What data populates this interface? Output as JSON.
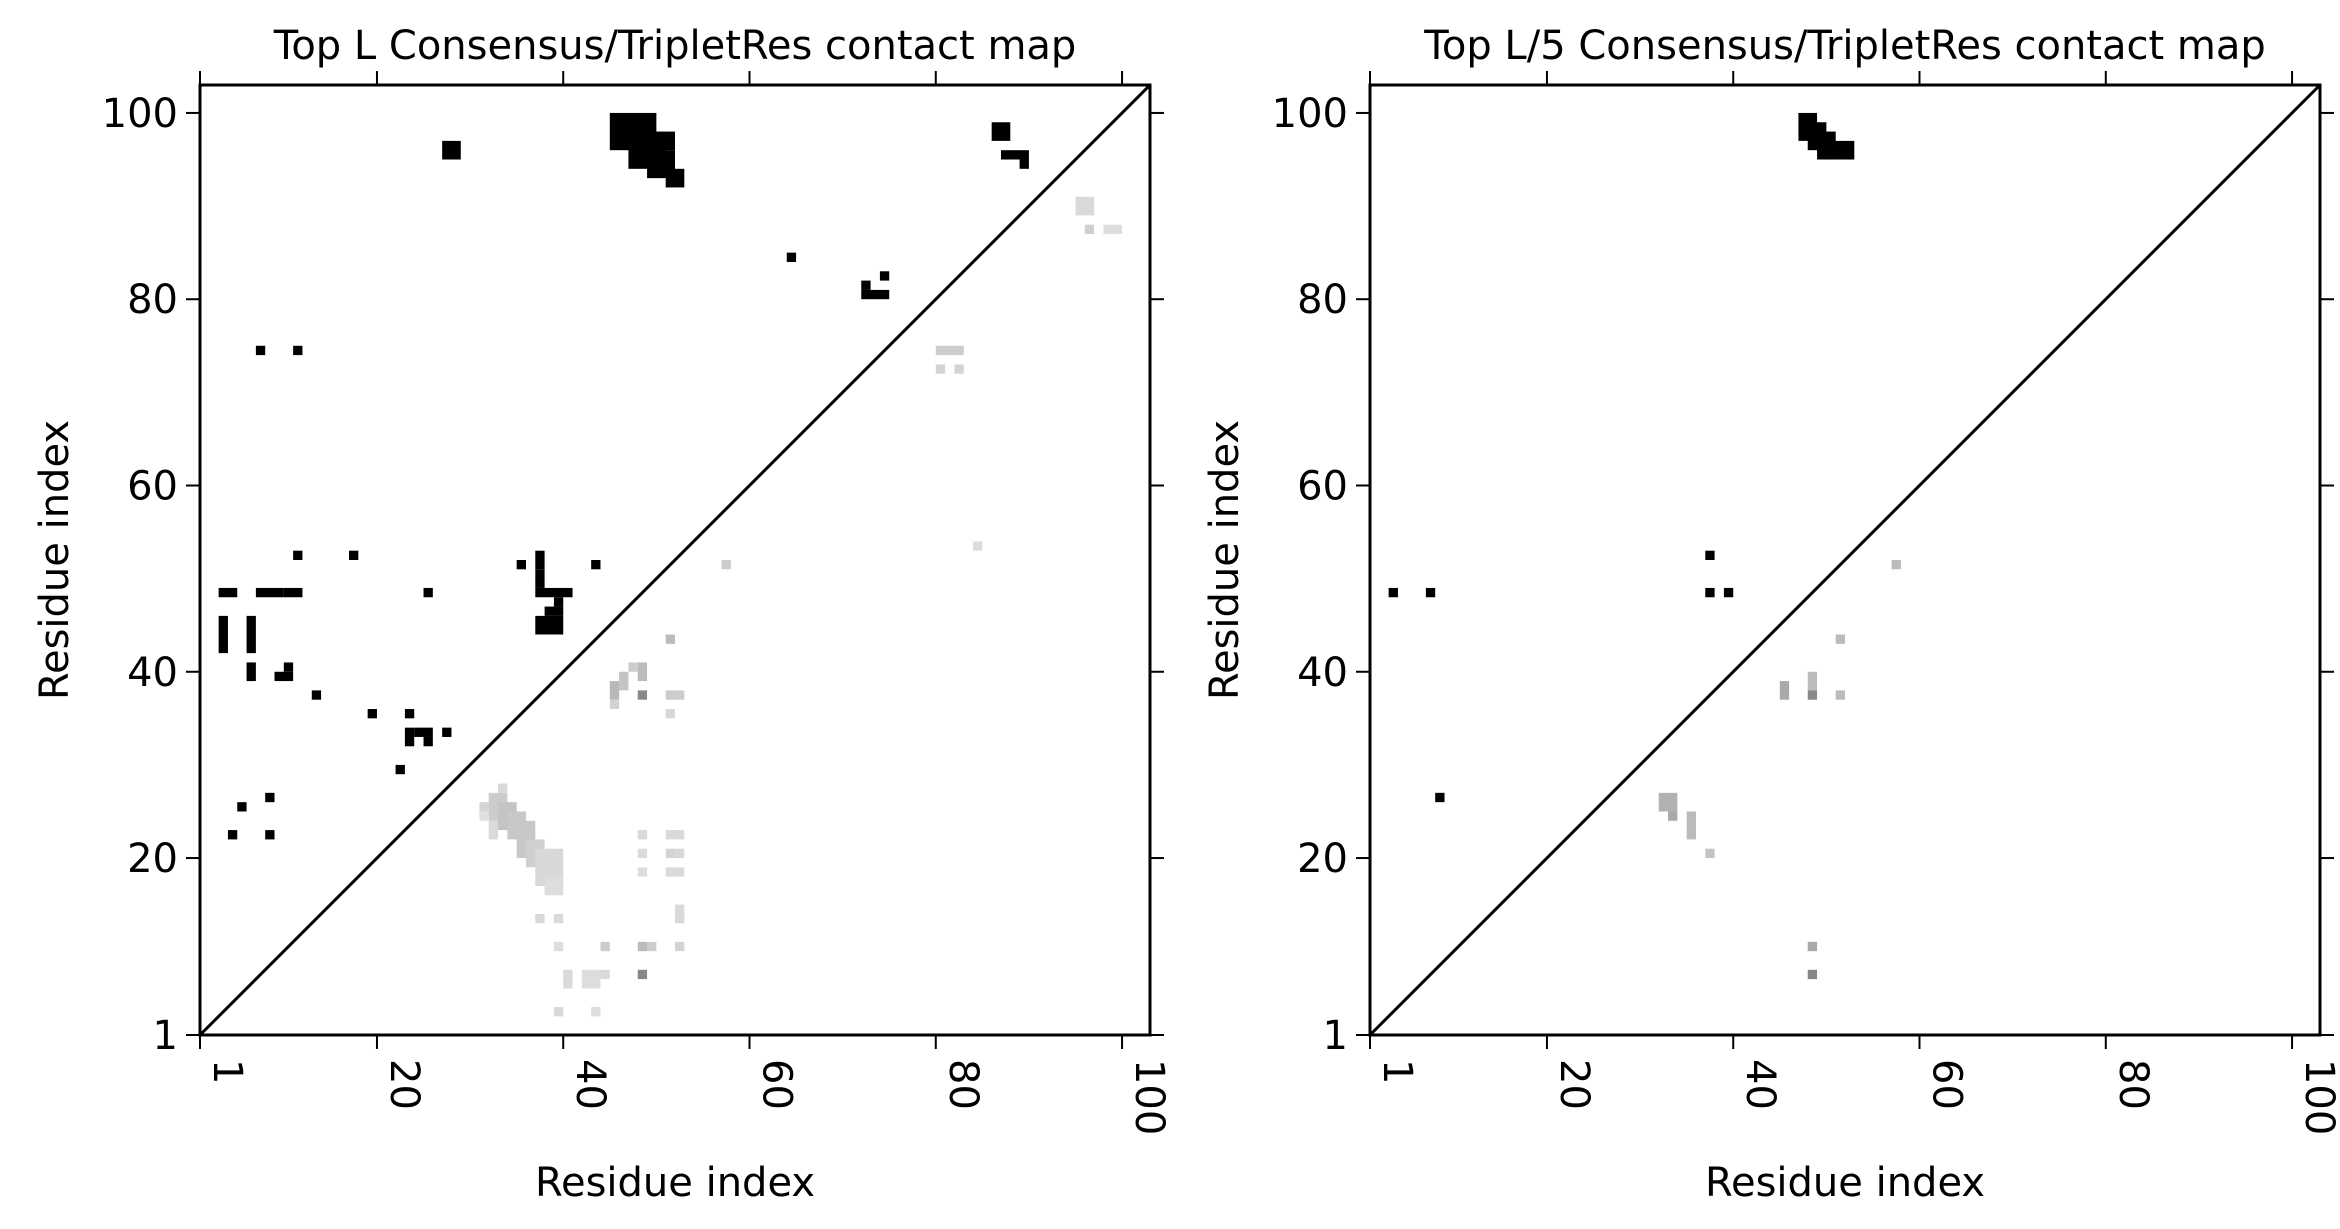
{
  "chart_data": [
    {
      "type": "heatmap",
      "title": "Top L Consensus/TripletRes contact map",
      "xlabel": "Residue index",
      "ylabel": "Residue index",
      "xlim": [
        1,
        103
      ],
      "ylim": [
        1,
        103
      ],
      "xticks": [
        "1",
        "20",
        "40",
        "60",
        "80",
        "100"
      ],
      "yticks": [
        "1",
        "20",
        "40",
        "60",
        "80",
        "100"
      ],
      "diagonal_line": true,
      "grid": false,
      "upper_black_rects": [
        [
          45,
          50,
          96,
          100
        ],
        [
          47,
          51,
          94,
          97
        ],
        [
          49,
          52,
          93,
          96
        ],
        [
          51,
          53,
          92,
          94
        ],
        [
          49,
          52,
          96,
          98
        ],
        [
          27,
          29,
          95,
          97
        ],
        [
          86,
          88,
          97,
          99
        ],
        [
          87,
          90,
          95,
          96
        ],
        [
          89,
          90,
          94,
          95
        ],
        [
          64,
          65,
          84,
          85
        ],
        [
          72,
          73,
          81,
          82
        ],
        [
          72,
          75,
          80,
          81
        ],
        [
          74,
          75,
          82,
          83
        ],
        [
          7,
          8,
          74,
          75
        ],
        [
          11,
          12,
          74,
          75
        ],
        [
          3,
          5,
          48,
          49
        ],
        [
          7,
          10,
          48,
          49
        ],
        [
          10,
          12,
          48,
          49
        ],
        [
          11,
          12,
          52,
          53
        ],
        [
          17,
          18,
          52,
          53
        ],
        [
          25,
          26,
          48,
          49
        ],
        [
          35,
          36,
          51,
          52
        ],
        [
          37,
          38,
          51,
          53
        ],
        [
          37,
          38,
          49,
          51
        ],
        [
          37,
          41,
          48,
          49
        ],
        [
          39,
          40,
          47,
          48
        ],
        [
          37,
          40,
          44,
          46
        ],
        [
          38,
          40,
          46,
          47
        ],
        [
          43,
          44,
          51,
          52
        ],
        [
          3,
          4,
          42,
          46
        ],
        [
          6,
          7,
          44,
          46
        ],
        [
          6,
          7,
          42,
          44
        ],
        [
          6,
          7,
          39,
          41
        ],
        [
          9,
          11,
          39,
          40
        ],
        [
          10,
          11,
          40,
          41
        ],
        [
          13,
          14,
          37,
          38
        ],
        [
          19,
          20,
          35,
          36
        ],
        [
          23,
          24,
          35,
          36
        ],
        [
          23,
          24,
          32,
          34
        ],
        [
          24,
          26,
          33,
          34
        ],
        [
          25,
          26,
          32,
          33
        ],
        [
          27,
          28,
          33,
          34
        ],
        [
          22,
          23,
          29,
          30
        ],
        [
          5,
          6,
          25,
          26
        ],
        [
          8,
          9,
          26,
          27
        ],
        [
          4,
          5,
          22,
          23
        ],
        [
          8,
          9,
          22,
          23
        ]
      ],
      "lower_gray_rects": [
        [
          31,
          32,
          25,
          26,
          "#d4d4d4"
        ],
        [
          32,
          34,
          24,
          27,
          "#cccccc"
        ],
        [
          33,
          35,
          23,
          26,
          "#c4c4c4"
        ],
        [
          34,
          36,
          22,
          25,
          "#c8c8c8"
        ],
        [
          35,
          37,
          20,
          24,
          "#c8c8c8"
        ],
        [
          36,
          38,
          19,
          22,
          "#d0d0d0"
        ],
        [
          37,
          40,
          17,
          21,
          "#d8d8d8"
        ],
        [
          38,
          40,
          16,
          18,
          "#dddddd"
        ],
        [
          33,
          34,
          27,
          28,
          "#d9d9d9"
        ],
        [
          32,
          33,
          22,
          24,
          "#dadada"
        ],
        [
          31,
          32,
          24,
          25,
          "#e0e0e0"
        ],
        [
          45,
          46,
          37,
          39,
          "#b8b8b8"
        ],
        [
          46,
          47,
          38,
          40,
          "#c4c4c4"
        ],
        [
          48,
          49,
          39,
          41,
          "#bbbbbb"
        ],
        [
          47,
          48,
          40,
          41,
          "#cccccc"
        ],
        [
          48,
          49,
          37,
          38,
          "#888888"
        ],
        [
          45,
          46,
          36,
          37,
          "#d2d2d2"
        ],
        [
          51,
          52,
          43,
          44,
          "#bbbbbb"
        ],
        [
          51,
          53,
          37,
          38,
          "#cccccc"
        ],
        [
          51,
          52,
          35,
          36,
          "#d8d8d8"
        ],
        [
          57,
          58,
          51,
          52,
          "#cccccc"
        ],
        [
          84,
          85,
          53,
          54,
          "#dddddd"
        ],
        [
          80,
          83,
          74,
          75,
          "#cccccc"
        ],
        [
          80,
          81,
          72,
          73,
          "#d4d4d4"
        ],
        [
          82,
          83,
          72,
          73,
          "#d4d4d4"
        ],
        [
          95,
          97,
          89,
          91,
          "#dadada"
        ],
        [
          96,
          97,
          87,
          88,
          "#d0d0d0"
        ],
        [
          98,
          100,
          87,
          88,
          "#dddddd"
        ],
        [
          48,
          49,
          22,
          23,
          "#d9d9d9"
        ],
        [
          51,
          53,
          22,
          23,
          "#d9d9d9"
        ],
        [
          48,
          49,
          20,
          21,
          "#dadada"
        ],
        [
          51,
          52,
          20,
          21,
          "#d4d4d4"
        ],
        [
          52,
          53,
          20,
          21,
          "#d9d9d9"
        ],
        [
          48,
          49,
          18,
          19,
          "#dddddd"
        ],
        [
          51,
          53,
          18,
          19,
          "#dadada"
        ],
        [
          52,
          53,
          13,
          15,
          "#d9d9d9"
        ],
        [
          52,
          53,
          10,
          11,
          "#d4d4d4"
        ],
        [
          48,
          49,
          10,
          11,
          "#bbbbbb"
        ],
        [
          49,
          50,
          10,
          11,
          "#cccccc"
        ],
        [
          44,
          45,
          10,
          11,
          "#cccccc"
        ],
        [
          48,
          49,
          7,
          8,
          "#888888"
        ],
        [
          40,
          41,
          6,
          8,
          "#dadada"
        ],
        [
          42,
          44,
          6,
          8,
          "#dddddd"
        ],
        [
          44,
          45,
          7,
          8,
          "#dadada"
        ],
        [
          39,
          40,
          3,
          4,
          "#d9d9d9"
        ],
        [
          43,
          44,
          3,
          4,
          "#dddddd"
        ],
        [
          39,
          40,
          10,
          11,
          "#dddddd"
        ],
        [
          37,
          38,
          13,
          14,
          "#d9d9d9"
        ],
        [
          39,
          40,
          13,
          14,
          "#d9d9d9"
        ]
      ]
    },
    {
      "type": "heatmap",
      "title": "Top L/5 Consensus/TripletRes contact map",
      "xlabel": "Residue index",
      "ylabel": "Residue index",
      "xlim": [
        1,
        103
      ],
      "ylim": [
        1,
        103
      ],
      "xticks": [
        "1",
        "20",
        "40",
        "60",
        "80",
        "100"
      ],
      "yticks": [
        "1",
        "20",
        "40",
        "60",
        "80",
        "100"
      ],
      "diagonal_line": true,
      "grid": false,
      "upper_black_rects": [
        [
          47,
          49,
          97,
          100
        ],
        [
          48,
          50,
          96,
          99
        ],
        [
          49,
          51,
          95,
          98
        ],
        [
          50,
          53,
          95,
          97
        ],
        [
          3,
          4,
          48,
          49
        ],
        [
          7,
          8,
          48,
          49
        ],
        [
          37,
          38,
          52,
          53
        ],
        [
          37,
          38,
          48,
          49
        ],
        [
          39,
          40,
          48,
          49
        ],
        [
          8,
          9,
          26,
          27
        ]
      ],
      "lower_gray_rects": [
        [
          32,
          34,
          25,
          27,
          "#b2b2b2"
        ],
        [
          33,
          34,
          24,
          25,
          "#aaaaaa"
        ],
        [
          35,
          36,
          22,
          25,
          "#bbbbbb"
        ],
        [
          37,
          38,
          20,
          21,
          "#c4c4c4"
        ],
        [
          45,
          46,
          37,
          39,
          "#aaaaaa"
        ],
        [
          48,
          49,
          38,
          40,
          "#bbbbbb"
        ],
        [
          48,
          49,
          37,
          38,
          "#888888"
        ],
        [
          51,
          52,
          43,
          44,
          "#bbbbbb"
        ],
        [
          51,
          52,
          37,
          38,
          "#bbbbbb"
        ],
        [
          57,
          58,
          51,
          52,
          "#bbbbbb"
        ],
        [
          48,
          49,
          10,
          11,
          "#a8a8a8"
        ],
        [
          48,
          49,
          7,
          8,
          "#888888"
        ]
      ]
    }
  ]
}
